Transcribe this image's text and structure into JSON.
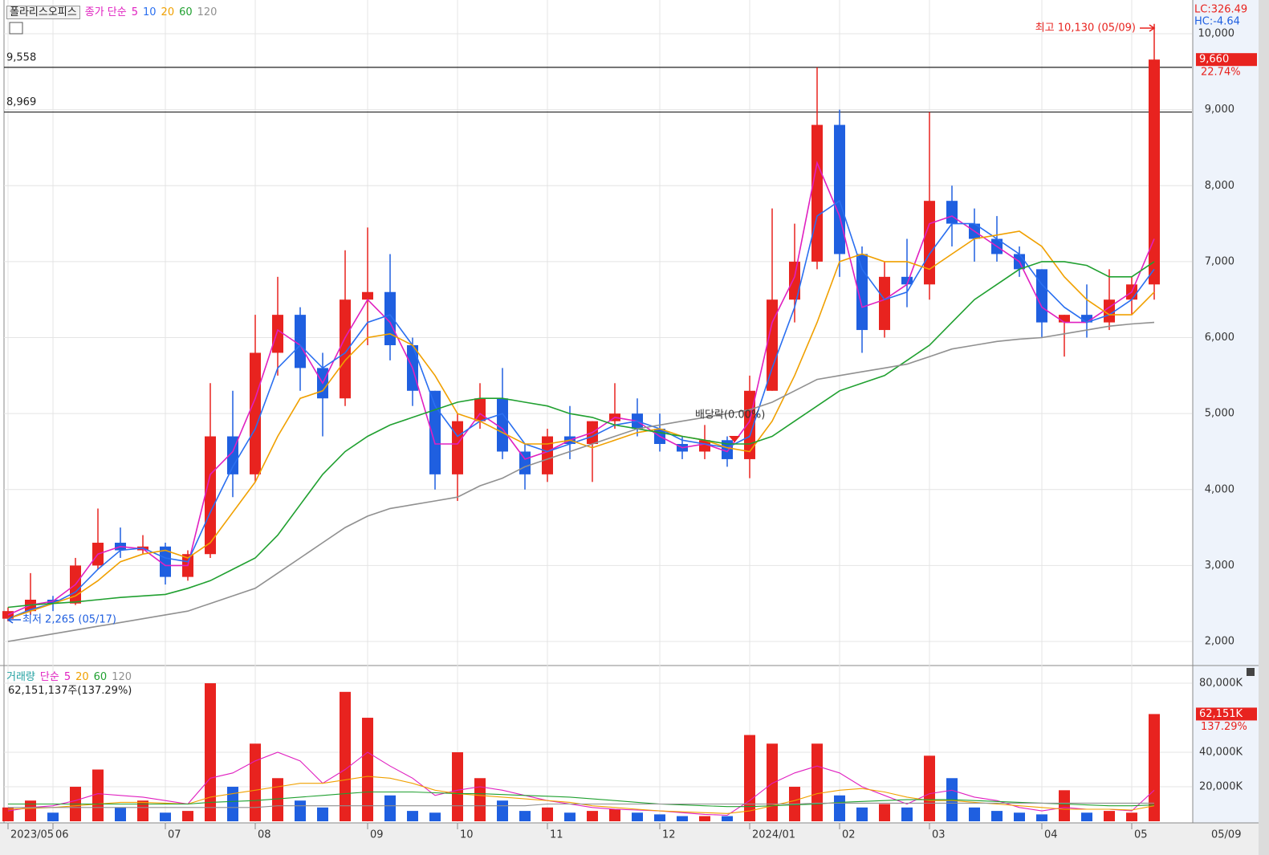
{
  "chart_data": {
    "type": "candlestick",
    "title": "폴라리스오피스",
    "ma_label": "종가 단순",
    "categories": [
      "2023/05",
      null,
      "06",
      null,
      null,
      null,
      null,
      "07",
      null,
      null,
      null,
      "08",
      null,
      null,
      null,
      null,
      "09",
      null,
      null,
      null,
      "10",
      null,
      null,
      null,
      "11",
      null,
      null,
      null,
      null,
      "12",
      null,
      null,
      null,
      "2024/01",
      null,
      null,
      null,
      "02",
      null,
      null,
      null,
      "03",
      null,
      null,
      null,
      null,
      "04",
      null,
      null,
      null,
      "05",
      null
    ],
    "last_date": "05/09",
    "open": [
      2300,
      2400,
      2550,
      2500,
      3000,
      3300,
      3200,
      3250,
      2850,
      3150,
      4700,
      4200,
      5800,
      6300,
      5600,
      5200,
      6500,
      6600,
      5900,
      5300,
      4200,
      4900,
      5200,
      4500,
      4200,
      4700,
      4600,
      4900,
      5000,
      4800,
      4600,
      4500,
      4650,
      4400,
      5300,
      6500,
      7000,
      8800,
      7100,
      6100,
      6800,
      6700,
      7800,
      7500,
      7300,
      7100,
      6900,
      6200,
      6300,
      6200,
      6500,
      6700
    ],
    "high": [
      2450,
      2900,
      2600,
      3100,
      3750,
      3500,
      3400,
      3300,
      3200,
      5400,
      5300,
      6300,
      6800,
      6400,
      5800,
      7150,
      7450,
      7100,
      6000,
      5300,
      5000,
      5400,
      5600,
      4600,
      4800,
      5100,
      4900,
      5400,
      5200,
      5000,
      4700,
      4850,
      4700,
      5500,
      7700,
      7500,
      9558,
      9000,
      7200,
      7000,
      7300,
      8969,
      8000,
      7700,
      7600,
      7200,
      6900,
      6300,
      6700,
      6900,
      6800,
      10130
    ],
    "low": [
      2265,
      2350,
      2400,
      2480,
      2950,
      3100,
      3150,
      2750,
      2800,
      3100,
      3900,
      4100,
      5500,
      5300,
      4700,
      5100,
      5900,
      5700,
      5100,
      4000,
      3850,
      4800,
      4400,
      4000,
      4100,
      4400,
      4100,
      4800,
      4700,
      4500,
      4400,
      4400,
      4300,
      4150,
      5300,
      6200,
      6900,
      6800,
      5800,
      6000,
      6400,
      6500,
      7200,
      7000,
      7000,
      6800,
      6000,
      5750,
      6000,
      6100,
      6300,
      6500
    ],
    "close": [
      2400,
      2550,
      2500,
      3000,
      3300,
      3200,
      3250,
      2850,
      3150,
      4700,
      4200,
      5800,
      6300,
      5600,
      5200,
      6500,
      6600,
      5900,
      5300,
      4200,
      4900,
      5200,
      4500,
      4200,
      4700,
      4600,
      4900,
      5000,
      4800,
      4600,
      4500,
      4650,
      4400,
      5300,
      6500,
      7000,
      8800,
      7100,
      6100,
      6800,
      6700,
      7800,
      7500,
      7300,
      7100,
      6900,
      6200,
      6300,
      6200,
      6500,
      6700,
      9660
    ],
    "up_color": "#e8231f",
    "down_color": "#1f5fe0",
    "ylim": [
      1694,
      10444
    ],
    "yticks": [
      {
        "value": 2000,
        "label": "2,000"
      },
      {
        "value": 3000,
        "label": "3,000"
      },
      {
        "value": 4000,
        "label": "4,000"
      },
      {
        "value": 5000,
        "label": "5,000"
      },
      {
        "value": 6000,
        "label": "6,000"
      },
      {
        "value": 7000,
        "label": "7,000"
      },
      {
        "value": 8000,
        "label": "8,000"
      },
      {
        "value": 9000,
        "label": "9,000"
      },
      {
        "value": 10000,
        "label": "10,000"
      }
    ],
    "grid": true,
    "ma_series": [
      {
        "name": "5",
        "color": "#e020c0",
        "values": [
          2350,
          2480,
          2530,
          2750,
          3150,
          3250,
          3220,
          3000,
          3000,
          4200,
          4500,
          5200,
          6100,
          5900,
          5400,
          6000,
          6500,
          6200,
          5600,
          4600,
          4600,
          5000,
          4800,
          4400,
          4500,
          4650,
          4750,
          4950,
          4900,
          4700,
          4550,
          4600,
          4500,
          4900,
          6200,
          6800,
          8300,
          7600,
          6400,
          6500,
          6700,
          7500,
          7600,
          7400,
          7200,
          7000,
          6400,
          6200,
          6200,
          6400,
          6600,
          7300
        ]
      },
      {
        "name": "10",
        "color": "#2a6ff0",
        "values": [
          2300,
          2420,
          2500,
          2650,
          2950,
          3200,
          3230,
          3100,
          3050,
          3700,
          4300,
          4800,
          5600,
          5900,
          5600,
          5800,
          6200,
          6300,
          5900,
          5100,
          4700,
          4900,
          5000,
          4600,
          4500,
          4600,
          4700,
          4850,
          4900,
          4800,
          4650,
          4600,
          4550,
          4700,
          5600,
          6400,
          7600,
          7800,
          6900,
          6500,
          6600,
          7100,
          7500,
          7500,
          7300,
          7100,
          6700,
          6400,
          6200,
          6300,
          6500,
          6900
        ]
      },
      {
        "name": "20",
        "color": "#f0a000",
        "values": [
          2300,
          2400,
          2500,
          2600,
          2800,
          3050,
          3150,
          3200,
          3100,
          3300,
          3700,
          4100,
          4700,
          5200,
          5300,
          5700,
          6000,
          6050,
          5900,
          5500,
          5000,
          4900,
          4750,
          4600,
          4600,
          4650,
          4550,
          4650,
          4750,
          4800,
          4700,
          4650,
          4550,
          4500,
          4900,
          5500,
          6200,
          7000,
          7100,
          7000,
          7000,
          6900,
          7100,
          7300,
          7350,
          7400,
          7200,
          6800,
          6500,
          6300,
          6300,
          6600
        ]
      },
      {
        "name": "60",
        "color": "#20a030",
        "values": [
          2450,
          2480,
          2500,
          2520,
          2550,
          2580,
          2600,
          2620,
          2700,
          2800,
          2950,
          3100,
          3400,
          3800,
          4200,
          4500,
          4700,
          4850,
          4950,
          5050,
          5150,
          5200,
          5200,
          5150,
          5100,
          5000,
          4950,
          4850,
          4800,
          4750,
          4700,
          4650,
          4600,
          4600,
          4700,
          4900,
          5100,
          5300,
          5400,
          5500,
          5700,
          5900,
          6200,
          6500,
          6700,
          6900,
          7000,
          7000,
          6950,
          6800,
          6800,
          7000
        ]
      },
      {
        "name": "120",
        "color": "#909090",
        "values": [
          2000,
          2050,
          2100,
          2150,
          2200,
          2250,
          2300,
          2350,
          2400,
          2500,
          2600,
          2700,
          2900,
          3100,
          3300,
          3500,
          3650,
          3750,
          3800,
          3850,
          3900,
          4050,
          4150,
          4300,
          4400,
          4500,
          4600,
          4700,
          4800,
          4850,
          4900,
          4950,
          5000,
          5050,
          5150,
          5300,
          5450,
          5500,
          5550,
          5600,
          5650,
          5750,
          5850,
          5900,
          5950,
          5980,
          6000,
          6050,
          6100,
          6150,
          6180,
          6200
        ]
      }
    ],
    "ref_lines": [
      {
        "value": 9558,
        "label": "9,558"
      },
      {
        "value": 8969,
        "label": "8,969"
      }
    ],
    "annotations": {
      "high": "최고 10,130 (05/09)",
      "low": "최저 2,265 (05/17)",
      "dividend": "배당락(0.00%)",
      "lc": "LC:326.49",
      "hc": "HC:-4.64",
      "current": "9,660",
      "change": "22.74%"
    },
    "volume": {
      "label": "거래량",
      "ma_label": "단순",
      "info": "62,151,137주(137.29%)",
      "values": [
        8000,
        12000,
        5000,
        20000,
        30000,
        8000,
        12000,
        5000,
        6000,
        80000,
        20000,
        45000,
        25000,
        12000,
        8000,
        75000,
        60000,
        15000,
        6000,
        5000,
        40000,
        25000,
        12000,
        6000,
        8000,
        5000,
        6000,
        7000,
        5000,
        4000,
        3000,
        3000,
        3000,
        50000,
        45000,
        20000,
        45000,
        15000,
        8000,
        10000,
        8000,
        38000,
        25000,
        8000,
        6000,
        5000,
        4000,
        18000,
        5000,
        6000,
        5000,
        62151
      ],
      "ylim": [
        0,
        89800
      ],
      "yticks": [
        {
          "value": 20000,
          "label": "20,000K"
        },
        {
          "value": 40000,
          "label": "40,000K"
        },
        {
          "value": 80000,
          "label": "80,000K"
        }
      ],
      "ma_series": [
        {
          "name": "5",
          "color": "#e020c0",
          "values": [
            6000,
            8000,
            9000,
            12000,
            16000,
            15000,
            14000,
            12000,
            10000,
            25000,
            28000,
            35000,
            40000,
            35000,
            22000,
            30000,
            40000,
            32000,
            25000,
            15000,
            18000,
            20000,
            18000,
            15000,
            12000,
            10000,
            8000,
            7000,
            6500,
            6000,
            5000,
            4000,
            3500,
            12000,
            22000,
            28000,
            32000,
            28000,
            20000,
            15000,
            10000,
            16000,
            18000,
            14000,
            12000,
            8000,
            6000,
            8000,
            7000,
            7000,
            6000,
            18000
          ]
        },
        {
          "name": "20",
          "color": "#f0a000",
          "values": [
            7000,
            7500,
            8000,
            9000,
            10000,
            11000,
            11000,
            10500,
            10000,
            14000,
            16000,
            18000,
            20000,
            22000,
            22000,
            24000,
            26000,
            25000,
            22000,
            18000,
            16000,
            15000,
            14000,
            13000,
            12000,
            11000,
            9000,
            8000,
            7000,
            6000,
            5500,
            5000,
            4500,
            6000,
            9000,
            12000,
            16000,
            18000,
            19000,
            17000,
            14000,
            12000,
            12000,
            11000,
            10000,
            9000,
            8000,
            7000,
            7000,
            7000,
            6500,
            9000
          ]
        },
        {
          "name": "60",
          "color": "#20a030",
          "values": [
            10000,
            10000,
            10000,
            10000,
            10000,
            10000,
            10000,
            10000,
            10000,
            11000,
            11500,
            12000,
            13000,
            14000,
            15000,
            16000,
            17000,
            17000,
            17000,
            16500,
            16000,
            16000,
            15500,
            15000,
            14500,
            14000,
            13000,
            12000,
            11000,
            10000,
            9500,
            9000,
            8500,
            8500,
            9000,
            9500,
            10000,
            11000,
            11500,
            12000,
            12500,
            12500,
            12500,
            12000,
            11500,
            11000,
            10500,
            10000,
            9500,
            9000,
            9000,
            9500
          ]
        },
        {
          "name": "120",
          "color": "#909090",
          "values": [
            8000,
            8000,
            8000,
            8000,
            8000,
            8000,
            8000,
            8000,
            8000,
            8000,
            8000,
            8000,
            9000,
            9000,
            9000,
            9000,
            9000,
            9000,
            9000,
            9000,
            9000,
            9000,
            9000,
            9000,
            10000,
            10000,
            10000,
            10000,
            10000,
            10000,
            10000,
            10000,
            10000,
            10000,
            10000,
            10000,
            10500,
            10500,
            10500,
            10500,
            10500,
            10500,
            10500,
            10500,
            10500,
            10500,
            10500,
            10500,
            10500,
            10500,
            10500,
            10500
          ]
        }
      ],
      "current": "62,151K",
      "change": "137.29%"
    }
  }
}
